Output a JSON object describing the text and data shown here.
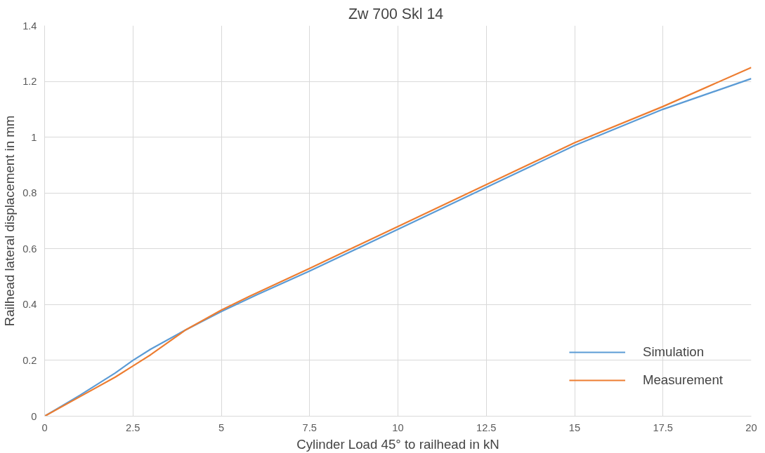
{
  "chart_data": {
    "type": "line",
    "title": "Zw 700  Skl 14",
    "xlabel": "Cylinder Load 45° to railhead in kN",
    "ylabel": "Railhead lateral displacement in mm",
    "xlim": [
      0,
      20
    ],
    "xticks": [
      0,
      2.5,
      5,
      7.5,
      10,
      12.5,
      15,
      17.5,
      20
    ],
    "ylim": [
      0,
      1.4
    ],
    "yticks": [
      0,
      0.2,
      0.4,
      0.6,
      0.8,
      1,
      1.2,
      1.4
    ],
    "grid": true,
    "legend": "bottom right",
    "line_style": "solid",
    "marker": "none",
    "series": [
      {
        "name": "Simulation",
        "color": "#5b9bd5",
        "x": [
          0,
          1,
          2,
          2.5,
          3,
          4,
          5,
          6,
          7.5,
          10,
          12.5,
          15,
          17.5,
          20
        ],
        "values": [
          0,
          0.075,
          0.155,
          0.2,
          0.24,
          0.31,
          0.375,
          0.435,
          0.52,
          0.67,
          0.82,
          0.97,
          1.1,
          1.21
        ]
      },
      {
        "name": "Measurement",
        "color": "#ed7d31",
        "x": [
          0,
          1,
          2,
          2.5,
          3,
          4,
          5,
          5.8,
          7.5,
          10,
          12.5,
          15,
          17.5,
          20
        ],
        "values": [
          0,
          0.07,
          0.14,
          0.18,
          0.22,
          0.31,
          0.38,
          0.43,
          0.53,
          0.68,
          0.83,
          0.98,
          1.11,
          1.25
        ]
      }
    ]
  }
}
